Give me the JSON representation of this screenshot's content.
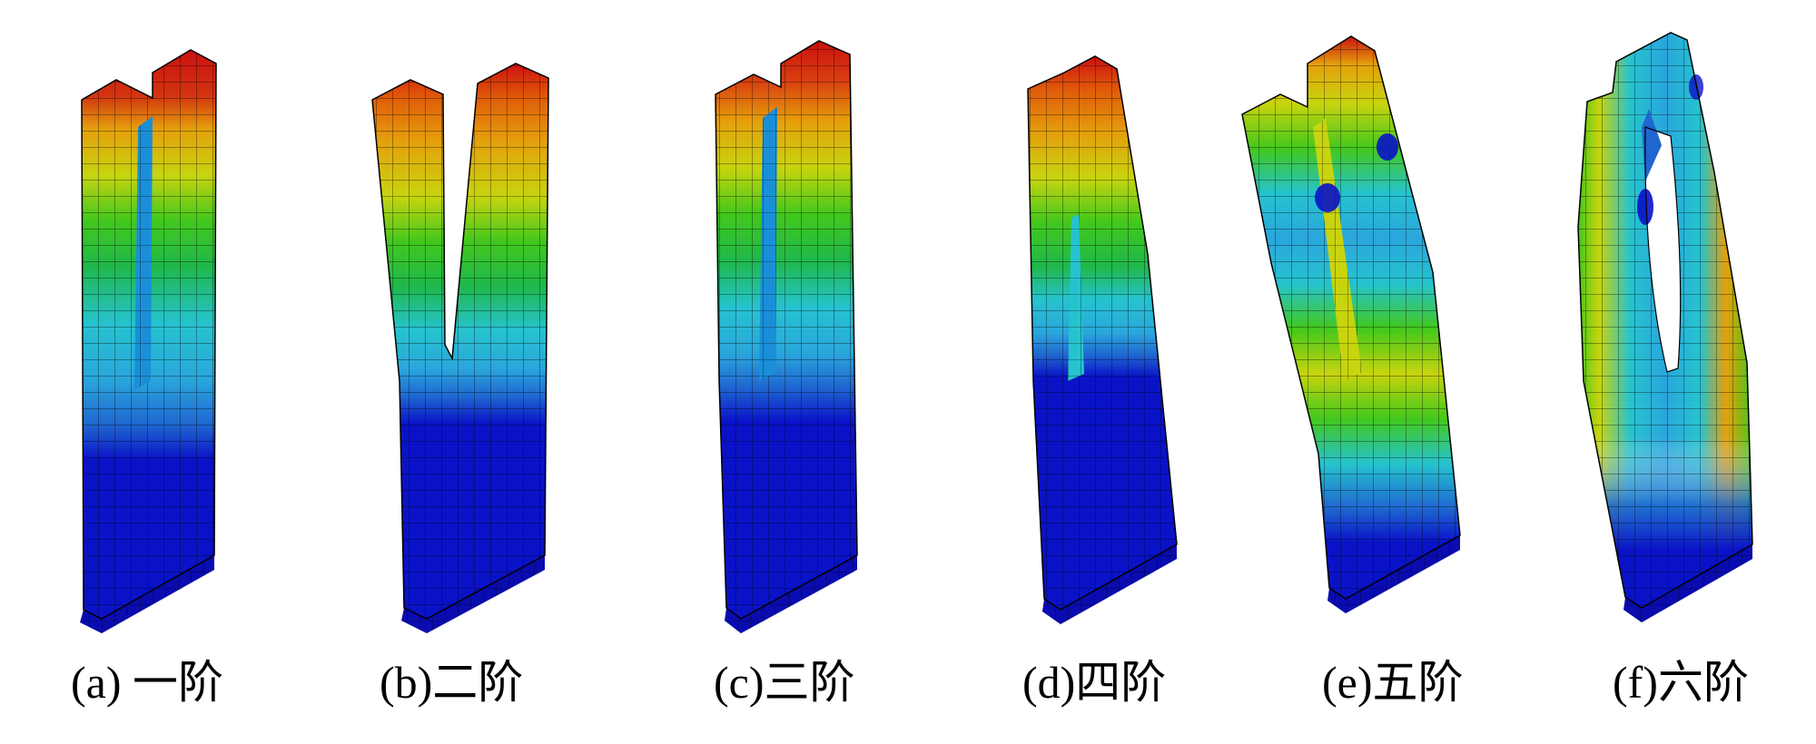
{
  "colors": {
    "fem_scale": [
      "#0a12c8",
      "#1f66d0",
      "#2aa6dc",
      "#26c3cf",
      "#1fb84a",
      "#42c81c",
      "#c8d40e",
      "#e5e509",
      "#e5a00c",
      "#e05a0a",
      "#cc1010"
    ]
  },
  "modes": [
    {
      "label": "(a) 一阶"
    },
    {
      "label": "(b)二阶"
    },
    {
      "label": "(c)三阶"
    },
    {
      "label": "(d)四阶"
    },
    {
      "label": "(e)五阶"
    },
    {
      "label": "(f)六阶"
    }
  ]
}
